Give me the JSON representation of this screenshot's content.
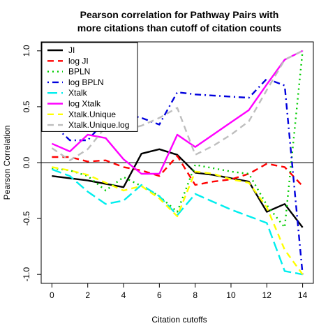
{
  "chart_data": {
    "type": "line",
    "title_lines": [
      "Pearson correlation for Pathway Pairs with",
      "more citations than cutoff of citation counts"
    ],
    "xlabel": "Citation cutoffs",
    "ylabel": "Pearson Correlation",
    "xlim": [
      -0.6,
      14.6
    ],
    "ylim": [
      -1.08,
      1.08
    ],
    "xticks": [
      0,
      2,
      4,
      6,
      8,
      10,
      12,
      14
    ],
    "yticks": [
      -1.0,
      -0.5,
      0.0,
      0.5,
      1.0
    ],
    "ytick_labels": [
      "-1.0",
      "-0.5",
      "0.0",
      "0.5",
      "1.0"
    ],
    "reference_line_y": 0,
    "legend_position": "top-left",
    "x": [
      0,
      1,
      2,
      3,
      4,
      5,
      6,
      7,
      8,
      9,
      10,
      11,
      12,
      13,
      14
    ],
    "series": [
      {
        "name": "JI",
        "color": "#000000",
        "dash": "solid",
        "values": [
          -0.12,
          -0.14,
          -0.16,
          -0.19,
          -0.22,
          0.08,
          0.12,
          0.07,
          -0.09,
          -0.11,
          -0.14,
          -0.17,
          -0.44,
          -0.37,
          -0.58
        ]
      },
      {
        "name": "log JI",
        "color": "#ff0000",
        "dash": "dashed",
        "values": [
          0.05,
          0.05,
          0.01,
          0.02,
          -0.04,
          -0.07,
          -0.12,
          0.06,
          -0.2,
          -0.17,
          -0.15,
          -0.1,
          -0.01,
          -0.04,
          -0.21
        ]
      },
      {
        "name": "BPLN",
        "color": "#00cc00",
        "dash": "dotted",
        "values": [
          -0.05,
          -0.07,
          -0.12,
          -0.25,
          -0.13,
          -0.21,
          -0.3,
          -0.44,
          -0.02,
          -0.05,
          -0.08,
          -0.1,
          -0.38,
          -0.58,
          1.0
        ]
      },
      {
        "name": "log BPLN",
        "color": "#0000dd",
        "dash": "dotdash",
        "values": [
          0.35,
          0.2,
          0.2,
          0.38,
          0.44,
          0.4,
          0.34,
          0.63,
          0.61,
          0.6,
          0.59,
          0.58,
          0.75,
          0.69,
          -1.0
        ]
      },
      {
        "name": "Xtalk",
        "color": "#00eeee",
        "dash": "longdash",
        "values": [
          -0.06,
          -0.12,
          -0.26,
          -0.37,
          -0.34,
          -0.2,
          -0.3,
          -0.47,
          -0.28,
          -0.35,
          -0.42,
          -0.48,
          -0.54,
          -0.97,
          -1.0
        ]
      },
      {
        "name": "log Xtalk",
        "color": "#ff00ff",
        "dash": "solid",
        "values": [
          0.17,
          0.1,
          0.25,
          0.22,
          0.03,
          -0.1,
          -0.1,
          0.25,
          0.14,
          0.25,
          0.36,
          0.47,
          0.7,
          0.92,
          1.0
        ]
      },
      {
        "name": "Xtalk.Unique",
        "color": "#ffff00",
        "dash": "dashed",
        "values": [
          -0.04,
          -0.07,
          -0.11,
          -0.18,
          -0.25,
          -0.21,
          -0.32,
          -0.48,
          -0.08,
          -0.1,
          -0.15,
          -0.18,
          -0.4,
          -0.78,
          -1.0
        ]
      },
      {
        "name": "Xtalk.Unique.log",
        "color": "#bebebe",
        "dash": "dashed",
        "values": [
          0.13,
          0.02,
          0.12,
          0.32,
          0.29,
          0.33,
          0.4,
          0.49,
          0.07,
          0.15,
          0.25,
          0.37,
          0.65,
          0.92,
          1.0
        ]
      }
    ]
  }
}
